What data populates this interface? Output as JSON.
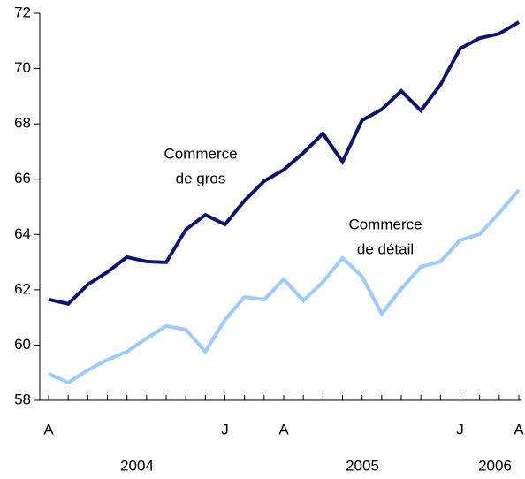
{
  "chart_data": {
    "type": "line",
    "categories": [
      "A",
      null,
      null,
      null,
      null,
      null,
      null,
      null,
      null,
      "J",
      null,
      null,
      "A",
      null,
      null,
      null,
      null,
      null,
      null,
      null,
      null,
      "J",
      null,
      null,
      "A"
    ],
    "year_labels": [
      "2004",
      "2005",
      "2006"
    ],
    "series": [
      {
        "name": "Commerce de gros",
        "label_lines": [
          "Commerce",
          "de gros"
        ],
        "color": "#0c1470",
        "values": [
          61.65,
          61.49,
          62.19,
          62.64,
          63.18,
          63.02,
          62.99,
          64.17,
          64.71,
          64.36,
          65.22,
          65.93,
          66.34,
          66.95,
          67.65,
          66.63,
          68.13,
          68.52,
          69.19,
          68.48,
          69.41,
          70.72,
          71.1,
          71.26,
          71.68
        ]
      },
      {
        "name": "Commerce de détail",
        "label_lines": [
          "Commerce",
          "de détail"
        ],
        "color": "#99ccff",
        "values": [
          58.96,
          58.64,
          59.09,
          59.47,
          59.76,
          60.24,
          60.69,
          60.56,
          59.76,
          60.91,
          61.74,
          61.64,
          62.38,
          61.61,
          62.28,
          63.15,
          62.48,
          61.13,
          62.03,
          62.83,
          63.02,
          63.79,
          64.01,
          64.78,
          65.61
        ]
      }
    ],
    "ylim": [
      58,
      72
    ],
    "yticks": [
      58,
      60,
      62,
      64,
      66,
      68,
      70,
      72
    ]
  }
}
